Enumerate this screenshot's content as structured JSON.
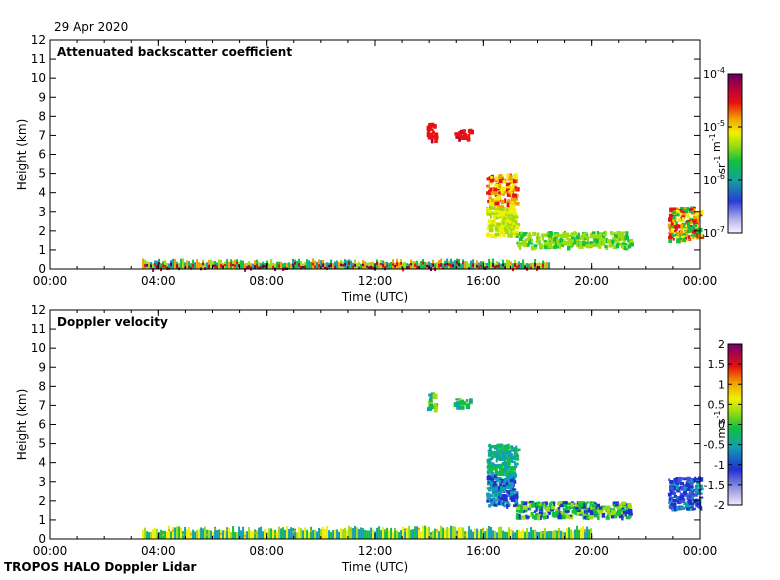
{
  "date_label": "29 Apr 2020",
  "footer_label": "TROPOS HALO Doppler Lidar",
  "chart_data": [
    {
      "type": "heatmap",
      "title": "Attenuated backscatter coefficient",
      "xlabel": "Time (UTC)",
      "ylabel": "Height (km)",
      "xlim": [
        0,
        24
      ],
      "ylim": [
        0,
        12
      ],
      "xticks": [
        0,
        4,
        8,
        12,
        16,
        20,
        24
      ],
      "xtick_labels": [
        "00:00",
        "04:00",
        "08:00",
        "12:00",
        "16:00",
        "20:00",
        "00:00"
      ],
      "yticks": [
        0,
        1,
        2,
        3,
        4,
        5,
        6,
        7,
        8,
        9,
        10,
        11,
        12
      ],
      "ytick_labels": [
        "0",
        "1",
        "2",
        "3",
        "4",
        "5",
        "6",
        "7",
        "8",
        "9",
        "10",
        "11",
        "12"
      ],
      "colorbar": {
        "scale": "log",
        "range": [
          1e-07,
          0.0001
        ],
        "tick_labels": [
          "10^-4",
          "10^-5",
          "10^-6",
          "10^-7"
        ],
        "unit_label": "sr^-1 m^-1"
      },
      "features": [
        {
          "t0": 3.4,
          "t1": 18.4,
          "h0": 0.0,
          "h1": 0.55,
          "value": "mixed boundary layer 1e-6..1e-4"
        },
        {
          "t0": 13.9,
          "t1": 14.2,
          "h0": 6.7,
          "h1": 7.7,
          "value": 3e-05
        },
        {
          "t0": 14.9,
          "t1": 15.5,
          "h0": 6.9,
          "h1": 7.4,
          "value": 3e-05
        },
        {
          "t0": 16.1,
          "t1": 17.2,
          "h0": 1.8,
          "h1": 5.0,
          "value": "1e-5 falling to 2e-6"
        },
        {
          "t0": 17.2,
          "t1": 21.4,
          "h0": 1.2,
          "h1": 2.0,
          "value": 3e-06
        },
        {
          "t0": 22.8,
          "t1": 24.0,
          "h0": 1.6,
          "h1": 3.3,
          "value": 2e-05
        }
      ]
    },
    {
      "type": "heatmap",
      "title": "Doppler velocity",
      "xlabel": "Time (UTC)",
      "ylabel": "Height (km)",
      "xlim": [
        0,
        24
      ],
      "ylim": [
        0,
        12
      ],
      "xticks": [
        0,
        4,
        8,
        12,
        16,
        20,
        24
      ],
      "xtick_labels": [
        "00:00",
        "04:00",
        "08:00",
        "12:00",
        "16:00",
        "20:00",
        "00:00"
      ],
      "yticks": [
        0,
        1,
        2,
        3,
        4,
        5,
        6,
        7,
        8,
        9,
        10,
        11,
        12
      ],
      "ytick_labels": [
        "0",
        "1",
        "2",
        "3",
        "4",
        "5",
        "6",
        "7",
        "8",
        "9",
        "10",
        "11",
        "12"
      ],
      "colorbar": {
        "scale": "linear",
        "range": [
          -2,
          2
        ],
        "tick_labels": [
          "2",
          "1.5",
          "1",
          "0.5",
          "0",
          "-0.5",
          "-1",
          "-1.5",
          "-2"
        ],
        "unit_label": "m s^-1"
      },
      "features": [
        {
          "t0": 3.4,
          "t1": 20.0,
          "h0": 0.0,
          "h1": 0.7,
          "value": "near 0, mixed -0.5..0.5"
        },
        {
          "t0": 13.9,
          "t1": 14.2,
          "h0": 6.7,
          "h1": 7.7,
          "value": -0.3
        },
        {
          "t0": 14.9,
          "t1": 15.5,
          "h0": 6.9,
          "h1": 7.4,
          "value": 0.0
        },
        {
          "t0": 16.1,
          "t1": 17.2,
          "h0": 1.8,
          "h1": 5.0,
          "value": -1.2
        },
        {
          "t0": 17.2,
          "t1": 21.4,
          "h0": 1.2,
          "h1": 2.0,
          "value": -0.6
        },
        {
          "t0": 22.8,
          "t1": 24.0,
          "h0": 1.6,
          "h1": 3.3,
          "value": -1.5
        }
      ]
    }
  ]
}
